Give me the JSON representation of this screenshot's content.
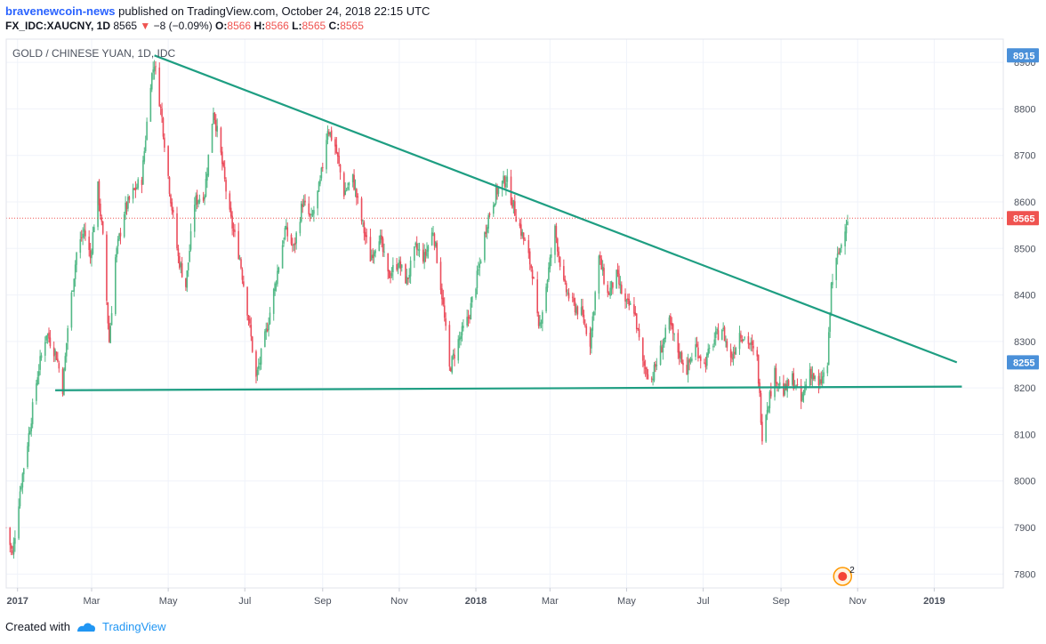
{
  "header": {
    "author": "bravenewcoin-news",
    "published_text": "published on TradingView.com, October 24, 2018 22:15 UTC",
    "symbol": "FX_IDC:XAUCNY, 1D",
    "last": "8565",
    "change": "−8 (−0.09%)",
    "o_label": "O:",
    "o": "8566",
    "h_label": "H:",
    "h": "8566",
    "l_label": "L:",
    "l": "8565",
    "c_label": "C:",
    "c": "8565"
  },
  "footer": {
    "created_with": "Created with",
    "brand": "TradingView"
  },
  "colors": {
    "up": "#53b987",
    "down": "#eb4d5c",
    "trendline": "#1e9e82",
    "last_price": "#ef5350",
    "highlight_label": "#4a90d9",
    "grid": "#f0f3fa",
    "axis_text": "#4c525e"
  },
  "chart_data": {
    "type": "candlestick",
    "title": "GOLD / CHINESE YUAN, 1D, IDC",
    "x_range": [
      "2016-12-23",
      "2019-02-25"
    ],
    "y_range": [
      7770,
      8950
    ],
    "y_ticks": [
      7800,
      7900,
      8000,
      8100,
      8200,
      8300,
      8400,
      8500,
      8600,
      8700,
      8800,
      8900
    ],
    "x_ticks": [
      {
        "label": "2017",
        "date": "2017-01-01",
        "bold": true
      },
      {
        "label": "Mar",
        "date": "2017-03-01"
      },
      {
        "label": "May",
        "date": "2017-05-01"
      },
      {
        "label": "Jul",
        "date": "2017-07-01"
      },
      {
        "label": "Sep",
        "date": "2017-09-01"
      },
      {
        "label": "Nov",
        "date": "2017-11-01"
      },
      {
        "label": "2018",
        "date": "2018-01-01",
        "bold": true
      },
      {
        "label": "Mar",
        "date": "2018-03-01"
      },
      {
        "label": "May",
        "date": "2018-05-01"
      },
      {
        "label": "Jul",
        "date": "2018-07-01"
      },
      {
        "label": "Sep",
        "date": "2018-09-01"
      },
      {
        "label": "Nov",
        "date": "2018-11-01"
      },
      {
        "label": "2019",
        "date": "2019-01-01",
        "bold": true
      }
    ],
    "price_path": [
      [
        "2016-12-23",
        7900
      ],
      [
        "2016-12-28",
        7840
      ],
      [
        "2017-01-03",
        7980
      ],
      [
        "2017-01-10",
        8100
      ],
      [
        "2017-01-17",
        8230
      ],
      [
        "2017-01-24",
        8320
      ],
      [
        "2017-02-01",
        8270
      ],
      [
        "2017-02-06",
        8200
      ],
      [
        "2017-02-10",
        8330
      ],
      [
        "2017-02-17",
        8490
      ],
      [
        "2017-02-23",
        8540
      ],
      [
        "2017-02-28",
        8480
      ],
      [
        "2017-03-06",
        8630
      ],
      [
        "2017-03-10",
        8520
      ],
      [
        "2017-03-15",
        8300
      ],
      [
        "2017-03-20",
        8480
      ],
      [
        "2017-03-27",
        8580
      ],
      [
        "2017-04-03",
        8620
      ],
      [
        "2017-04-10",
        8650
      ],
      [
        "2017-04-17",
        8860
      ],
      [
        "2017-04-20",
        8900
      ],
      [
        "2017-04-26",
        8780
      ],
      [
        "2017-05-02",
        8630
      ],
      [
        "2017-05-09",
        8480
      ],
      [
        "2017-05-15",
        8420
      ],
      [
        "2017-05-22",
        8600
      ],
      [
        "2017-05-30",
        8620
      ],
      [
        "2017-06-06",
        8800
      ],
      [
        "2017-06-12",
        8700
      ],
      [
        "2017-06-19",
        8570
      ],
      [
        "2017-06-27",
        8480
      ],
      [
        "2017-07-04",
        8350
      ],
      [
        "2017-07-10",
        8220
      ],
      [
        "2017-07-18",
        8320
      ],
      [
        "2017-07-25",
        8420
      ],
      [
        "2017-08-02",
        8540
      ],
      [
        "2017-08-09",
        8500
      ],
      [
        "2017-08-16",
        8600
      ],
      [
        "2017-08-23",
        8560
      ],
      [
        "2017-08-30",
        8640
      ],
      [
        "2017-09-05",
        8760
      ],
      [
        "2017-09-11",
        8720
      ],
      [
        "2017-09-18",
        8620
      ],
      [
        "2017-09-25",
        8650
      ],
      [
        "2017-10-02",
        8560
      ],
      [
        "2017-10-09",
        8480
      ],
      [
        "2017-10-16",
        8530
      ],
      [
        "2017-10-23",
        8440
      ],
      [
        "2017-10-31",
        8470
      ],
      [
        "2017-11-07",
        8430
      ],
      [
        "2017-11-14",
        8500
      ],
      [
        "2017-11-21",
        8480
      ],
      [
        "2017-11-28",
        8540
      ],
      [
        "2017-12-05",
        8400
      ],
      [
        "2017-12-11",
        8240
      ],
      [
        "2017-12-18",
        8300
      ],
      [
        "2017-12-26",
        8350
      ],
      [
        "2018-01-03",
        8450
      ],
      [
        "2018-01-10",
        8560
      ],
      [
        "2018-01-17",
        8620
      ],
      [
        "2018-01-25",
        8650
      ],
      [
        "2018-02-01",
        8580
      ],
      [
        "2018-02-08",
        8520
      ],
      [
        "2018-02-15",
        8450
      ],
      [
        "2018-02-20",
        8320
      ],
      [
        "2018-02-26",
        8420
      ],
      [
        "2018-03-05",
        8540
      ],
      [
        "2018-03-12",
        8420
      ],
      [
        "2018-03-19",
        8380
      ],
      [
        "2018-03-26",
        8360
      ],
      [
        "2018-04-02",
        8300
      ],
      [
        "2018-04-09",
        8480
      ],
      [
        "2018-04-16",
        8400
      ],
      [
        "2018-04-23",
        8440
      ],
      [
        "2018-04-30",
        8380
      ],
      [
        "2018-05-07",
        8370
      ],
      [
        "2018-05-14",
        8250
      ],
      [
        "2018-05-21",
        8220
      ],
      [
        "2018-05-28",
        8280
      ],
      [
        "2018-06-04",
        8340
      ],
      [
        "2018-06-11",
        8280
      ],
      [
        "2018-06-18",
        8240
      ],
      [
        "2018-06-25",
        8290
      ],
      [
        "2018-07-02",
        8250
      ],
      [
        "2018-07-09",
        8300
      ],
      [
        "2018-07-16",
        8330
      ],
      [
        "2018-07-23",
        8260
      ],
      [
        "2018-07-30",
        8320
      ],
      [
        "2018-08-06",
        8300
      ],
      [
        "2018-08-13",
        8260
      ],
      [
        "2018-08-17",
        8100
      ],
      [
        "2018-08-20",
        8150
      ],
      [
        "2018-08-27",
        8230
      ],
      [
        "2018-09-03",
        8190
      ],
      [
        "2018-09-10",
        8220
      ],
      [
        "2018-09-17",
        8170
      ],
      [
        "2018-09-24",
        8240
      ],
      [
        "2018-10-01",
        8200
      ],
      [
        "2018-10-08",
        8250
      ],
      [
        "2018-10-11",
        8420
      ],
      [
        "2018-10-15",
        8470
      ],
      [
        "2018-10-19",
        8510
      ],
      [
        "2018-10-22",
        8550
      ],
      [
        "2018-10-24",
        8565
      ]
    ],
    "last_price": 8565,
    "trendlines": [
      {
        "name": "descending-resistance",
        "from": [
          "2017-04-20",
          8915
        ],
        "to": [
          "2019-01-19",
          8255
        ]
      },
      {
        "name": "horizontal-support",
        "from": [
          "2017-01-31",
          8195
        ],
        "to": [
          "2019-01-23",
          8203
        ]
      }
    ],
    "price_labels": [
      {
        "value": 8915,
        "text": "8915",
        "kind": "highlight"
      },
      {
        "value": 8565,
        "text": "8565",
        "kind": "last"
      },
      {
        "value": 8255,
        "text": "8255",
        "kind": "highlight"
      }
    ],
    "event_badge": {
      "date": "2018-10-20",
      "count": "2"
    }
  }
}
